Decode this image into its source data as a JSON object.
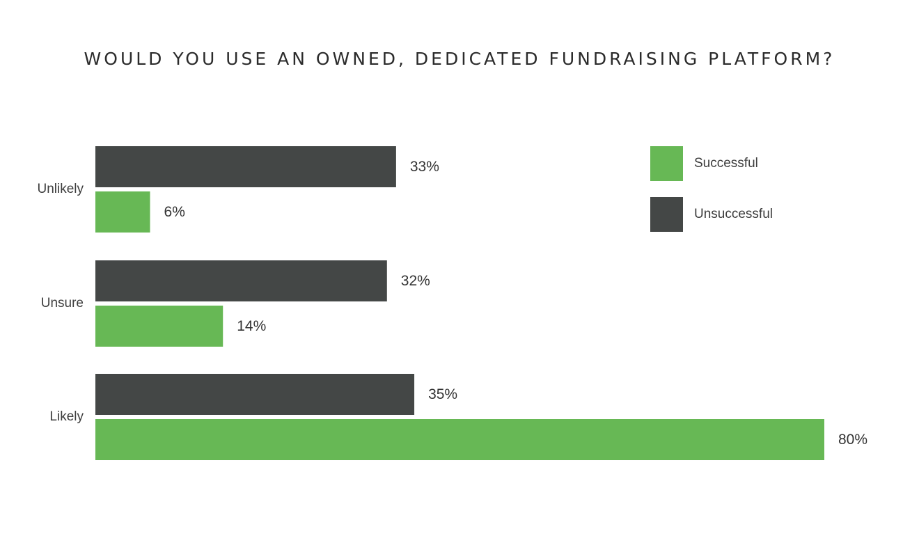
{
  "chart_data": {
    "type": "bar",
    "orientation": "horizontal",
    "title": "WOULD YOU USE AN OWNED, DEDICATED FUNDRAISING PLATFORM?",
    "categories": [
      "Unlikely",
      "Unsure",
      "Likely"
    ],
    "series": [
      {
        "name": "Unsuccessful",
        "color": "#444746",
        "values": [
          33,
          32,
          35
        ],
        "labels": [
          "33%",
          "32%",
          "35%"
        ]
      },
      {
        "name": "Successful",
        "color": "#67b855",
        "values": [
          6,
          14,
          80
        ],
        "labels": [
          "6%",
          "14%",
          "80%"
        ]
      }
    ],
    "legend": {
      "position": "top-right",
      "entries": [
        {
          "name": "Successful",
          "color": "#67b855"
        },
        {
          "name": "Unsuccessful",
          "color": "#444746"
        }
      ]
    },
    "xlim": [
      0,
      80
    ],
    "grid": false,
    "unit": "%"
  }
}
